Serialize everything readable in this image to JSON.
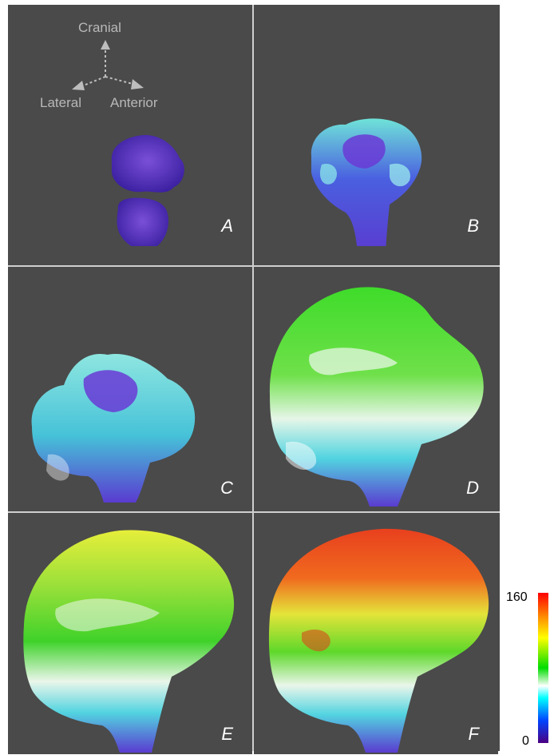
{
  "orientation": {
    "cranial": "Cranial",
    "lateral": "Lateral",
    "anterior": "Anterior"
  },
  "panels": [
    "A",
    "B",
    "C",
    "D",
    "E",
    "F"
  ],
  "colorbar": {
    "max": "160",
    "min": "0",
    "colors": [
      "#ff0000",
      "#ff8c00",
      "#ffff00",
      "#00dd00",
      "#ffffff",
      "#00ffff",
      "#0044ff",
      "#4b0082"
    ]
  }
}
